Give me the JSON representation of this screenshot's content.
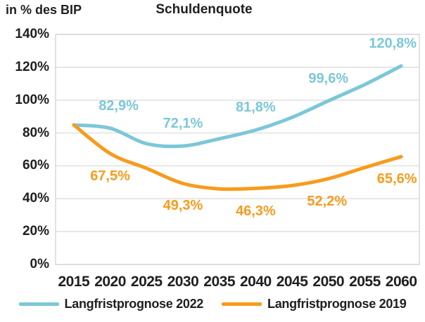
{
  "header": {
    "y_axis_title": "in % des BIP",
    "title": "Schuldenquote"
  },
  "chart_data": {
    "type": "line",
    "title": "Schuldenquote",
    "ylabel": "in % des BIP",
    "ylim": [
      0,
      140
    ],
    "grid": "horizontal",
    "legend_position": "bottom",
    "categories": [
      "2015",
      "2020",
      "2025",
      "2030",
      "2035",
      "2040",
      "2045",
      "2050",
      "2055",
      "2060"
    ],
    "y_ticks": [
      {
        "value": 140,
        "label": "140%"
      },
      {
        "value": 120,
        "label": "120%"
      },
      {
        "value": 100,
        "label": "100%"
      },
      {
        "value": 80,
        "label": "80%"
      },
      {
        "value": 60,
        "label": "60%"
      },
      {
        "value": 40,
        "label": "40%"
      },
      {
        "value": 20,
        "label": "20%"
      },
      {
        "value": 0,
        "label": "0%"
      }
    ],
    "series": [
      {
        "name": "Langfristprognose 2022",
        "color": "#7CC7D7",
        "label_side": "above",
        "values": [
          84.9,
          82.9,
          73.5,
          72.1,
          76.5,
          81.8,
          89.5,
          99.6,
          109.5,
          120.8
        ],
        "point_labels": [
          {
            "index": 1,
            "text": "82,9%",
            "dx": 12
          },
          {
            "index": 3,
            "text": "72,1%",
            "dx": 0
          },
          {
            "index": 5,
            "text": "81,8%",
            "dx": 0
          },
          {
            "index": 7,
            "text": "99,6%",
            "dx": 0
          },
          {
            "index": 9,
            "text": "120,8%",
            "dx": -12
          }
        ]
      },
      {
        "name": "Langfristprognose 2019",
        "color": "#F79B1D",
        "label_side": "below",
        "values": [
          84.9,
          67.5,
          58.5,
          49.3,
          46.0,
          46.3,
          48.0,
          52.2,
          59.0,
          65.6
        ],
        "point_labels": [
          {
            "index": 1,
            "text": "67,5%",
            "dx": 0
          },
          {
            "index": 3,
            "text": "49,3%",
            "dx": 0
          },
          {
            "index": 5,
            "text": "46,3%",
            "dx": 0
          },
          {
            "index": 7,
            "text": "52,2%",
            "dx": -2
          },
          {
            "index": 9,
            "text": "65,6%",
            "dx": -6
          }
        ]
      }
    ],
    "colors": {
      "grid": "#D9D9D9",
      "plot_border": "#CFCFCF",
      "text": "#1f1f1f"
    }
  }
}
